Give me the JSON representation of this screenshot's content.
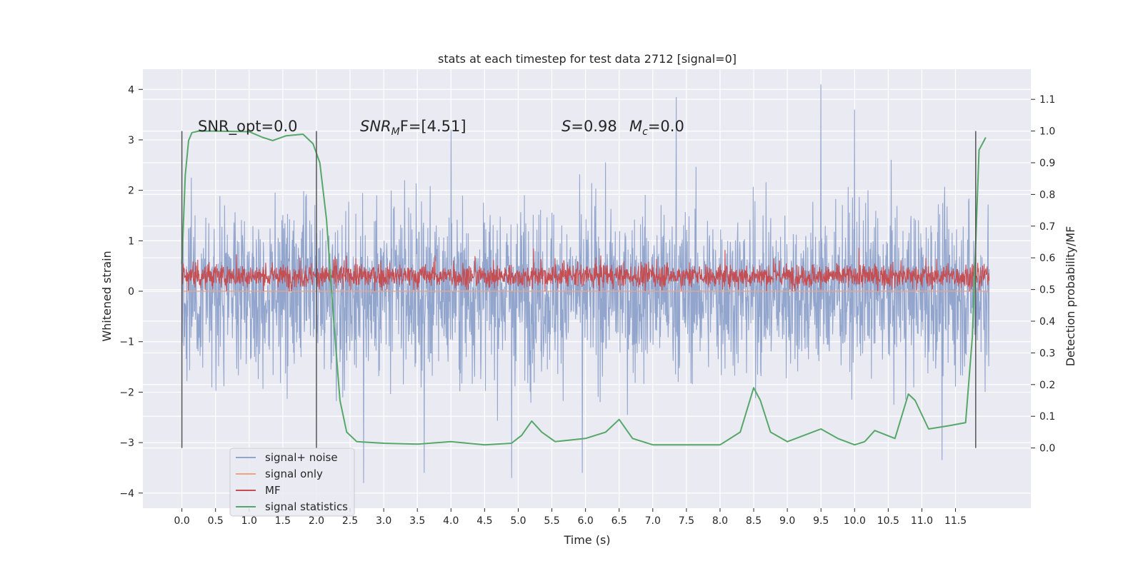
{
  "chart_data": {
    "type": "line",
    "title": "stats at each timestep for test data 2712 [signal=0]",
    "xlabel": "Time (s)",
    "ylabel": "Whitened strain",
    "ylabel_right": "Detection probability/MF",
    "xlim": [
      -0.58,
      12.62
    ],
    "ylim": [
      -4.3,
      4.4
    ],
    "ylim_right": [
      -0.19,
      1.195
    ],
    "x_ticks": [
      "0.0",
      "0.5",
      "1.0",
      "1.5",
      "2.0",
      "2.5",
      "3.0",
      "3.5",
      "4.0",
      "4.5",
      "5.0",
      "5.5",
      "6.0",
      "6.5",
      "7.0",
      "7.5",
      "8.0",
      "8.5",
      "9.0",
      "9.5",
      "10.0",
      "10.5",
      "11.0",
      "11.5"
    ],
    "y_ticks": [
      "−4",
      "−3",
      "−2",
      "−1",
      "0",
      "1",
      "2",
      "3",
      "4"
    ],
    "y_ticks_right": [
      "0.0",
      "0.1",
      "0.2",
      "0.3",
      "0.4",
      "0.5",
      "0.6",
      "0.7",
      "0.8",
      "0.9",
      "1.0",
      "1.1"
    ],
    "grid": true,
    "legend_position": "bottom-left",
    "annotations": {
      "snr_opt": "SNR_opt=0.0",
      "snr_mf_main": "SNR",
      "snr_mf_sub": "M",
      "snr_mf_rest": "F=[4.51]",
      "s_main": "S",
      "s_rest": "=0.98",
      "mc_main": "M",
      "mc_sub": "c",
      "mc_rest": "=0.0"
    },
    "window_boundaries_s": [
      0.0,
      2.0,
      11.8
    ],
    "series": [
      {
        "name": "signal+ noise",
        "axis": "left",
        "color": "#92a5cd",
        "x_range": [
          0.0,
          12.0
        ],
        "envelope_typical": [
          -1.8,
          1.8
        ],
        "extremes": [
          -3.8,
          4.1
        ],
        "peaks": [
          [
            4.0,
            3.2
          ],
          [
            7.35,
            3.85
          ],
          [
            9.5,
            4.1
          ],
          [
            10.0,
            3.6
          ],
          [
            2.7,
            -3.8
          ],
          [
            3.6,
            -3.6
          ],
          [
            4.9,
            -3.7
          ],
          [
            5.95,
            -3.6
          ],
          [
            11.3,
            -3.35
          ]
        ]
      },
      {
        "name": "signal only",
        "axis": "left",
        "color": "#eaa48a",
        "x_range": [
          0.0,
          12.0
        ],
        "values": "≈0"
      },
      {
        "name": "MF",
        "axis": "left",
        "color": "#c44e52",
        "x_range": [
          0.0,
          12.0
        ],
        "envelope_typical": [
          0.0,
          0.65
        ],
        "extremes": [
          0.0,
          1.0
        ]
      },
      {
        "name": "signal statistics",
        "axis": "right",
        "color": "#55a868",
        "x": [
          0.0,
          0.05,
          0.1,
          0.15,
          0.25,
          0.5,
          1.0,
          1.2,
          1.35,
          1.55,
          1.8,
          1.95,
          2.05,
          2.15,
          2.25,
          2.35,
          2.45,
          2.6,
          3.0,
          3.5,
          4.0,
          4.5,
          4.9,
          5.05,
          5.2,
          5.35,
          5.55,
          6.0,
          6.3,
          6.5,
          6.7,
          7.0,
          8.0,
          8.3,
          8.5,
          8.6,
          8.75,
          9.0,
          9.5,
          9.75,
          10.0,
          10.15,
          10.3,
          10.6,
          10.8,
          10.9,
          11.1,
          11.4,
          11.65,
          11.75,
          11.85,
          11.95
        ],
        "values": [
          0.58,
          0.86,
          0.97,
          0.995,
          1.0,
          1.0,
          0.998,
          0.98,
          0.97,
          0.985,
          0.99,
          0.96,
          0.9,
          0.72,
          0.42,
          0.15,
          0.05,
          0.02,
          0.015,
          0.012,
          0.02,
          0.01,
          0.015,
          0.04,
          0.085,
          0.05,
          0.02,
          0.03,
          0.05,
          0.09,
          0.03,
          0.01,
          0.01,
          0.05,
          0.19,
          0.15,
          0.05,
          0.02,
          0.06,
          0.03,
          0.01,
          0.02,
          0.055,
          0.03,
          0.17,
          0.15,
          0.06,
          0.07,
          0.08,
          0.35,
          0.94,
          0.98
        ]
      }
    ]
  }
}
